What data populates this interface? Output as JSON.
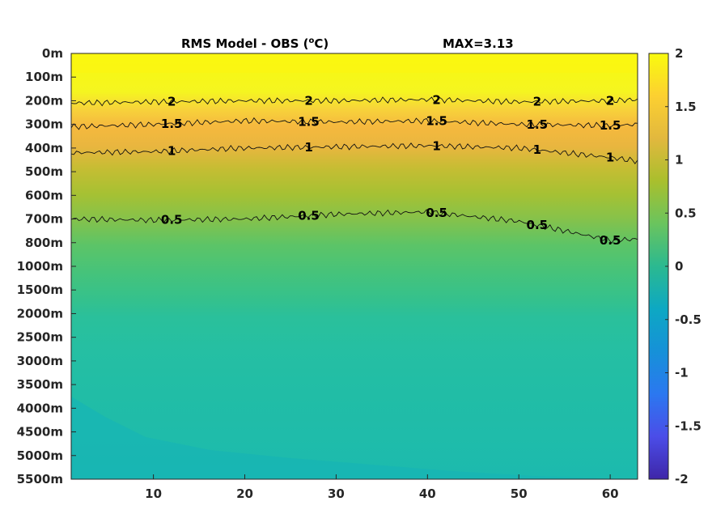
{
  "chart_data": {
    "type": "heatmap",
    "title": "RMS Model - OBS (",
    "title_unit_sup": "o",
    "title_unit_tail": "C)",
    "max_label": "MAX=3.13",
    "xlabel": "",
    "ylabel": "",
    "xlim": [
      1,
      63
    ],
    "x_ticks": [
      "10",
      "20",
      "30",
      "40",
      "50",
      "60"
    ],
    "x_tick_values": [
      10,
      20,
      30,
      40,
      50,
      60
    ],
    "y_ticks": [
      "0m",
      "100m",
      "200m",
      "300m",
      "400m",
      "500m",
      "600m",
      "700m",
      "800m",
      "1000m",
      "1500m",
      "2000m",
      "2500m",
      "3000m",
      "3500m",
      "4000m",
      "4500m",
      "5000m",
      "5500m"
    ],
    "colorbar": {
      "min": -2,
      "max": 2,
      "ticks": [
        "2",
        "1.5",
        "1",
        "0.5",
        "0",
        "-0.5",
        "-1",
        "-1.5",
        "-2"
      ],
      "tick_values": [
        2,
        1.5,
        1,
        0.5,
        0,
        -0.5,
        -1,
        -1.5,
        -2
      ],
      "colormap": "parula"
    },
    "depth_profile": {
      "depth_levels": [
        "0m",
        "100m",
        "200m",
        "300m",
        "400m",
        "500m",
        "600m",
        "700m",
        "800m",
        "1000m",
        "1500m",
        "2000m",
        "2500m",
        "3000m",
        "3500m",
        "4000m",
        "4500m",
        "5000m",
        "5500m"
      ],
      "rms_values": [
        2.4,
        2.2,
        1.8,
        1.5,
        1.15,
        0.95,
        0.8,
        0.65,
        0.5,
        0.35,
        0.25,
        0.18,
        0.17,
        0.16,
        0.16,
        0.15,
        0.12,
        0.1,
        0.08
      ]
    },
    "contours": [
      {
        "level": 2,
        "label": "2",
        "depth_by_x": [
          [
            1,
            210
          ],
          [
            10,
            205
          ],
          [
            20,
            200
          ],
          [
            30,
            200
          ],
          [
            40,
            195
          ],
          [
            50,
            205
          ],
          [
            60,
            200
          ],
          [
            63,
            195
          ]
        ]
      },
      {
        "level": 1.5,
        "label": "1.5",
        "depth_by_x": [
          [
            1,
            310
          ],
          [
            10,
            300
          ],
          [
            20,
            285
          ],
          [
            30,
            290
          ],
          [
            40,
            285
          ],
          [
            50,
            300
          ],
          [
            60,
            305
          ],
          [
            63,
            300
          ]
        ]
      },
      {
        "level": 1,
        "label": "1",
        "depth_by_x": [
          [
            1,
            420
          ],
          [
            10,
            415
          ],
          [
            20,
            400
          ],
          [
            30,
            395
          ],
          [
            40,
            390
          ],
          [
            50,
            400
          ],
          [
            60,
            440
          ],
          [
            63,
            455
          ]
        ]
      },
      {
        "level": 0.5,
        "label": "0.5",
        "depth_by_x": [
          [
            1,
            700
          ],
          [
            10,
            705
          ],
          [
            20,
            700
          ],
          [
            30,
            680
          ],
          [
            40,
            670
          ],
          [
            50,
            710
          ],
          [
            60,
            790
          ],
          [
            63,
            785
          ]
        ]
      }
    ]
  }
}
